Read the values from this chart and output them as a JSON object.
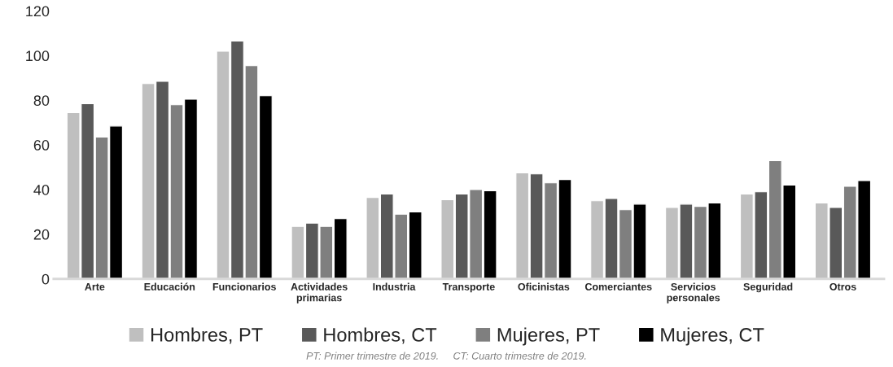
{
  "chart_data": {
    "type": "bar",
    "categories": [
      "Arte",
      "Educación",
      "Funcionarios",
      "Actividades primarias",
      "Industria",
      "Transporte",
      "Oficinistas",
      "Comerciantes",
      "Servicios personales",
      "Seguridad",
      "Otros"
    ],
    "series": [
      {
        "name": "Hombres, PT",
        "color": "#bfbfbf",
        "values": [
          74.5,
          87.5,
          102,
          23.5,
          36.5,
          35.5,
          47.5,
          35,
          32,
          38,
          34
        ]
      },
      {
        "name": "Hombres, CT",
        "color": "#595959",
        "values": [
          78.5,
          88.5,
          106.5,
          25,
          38,
          38,
          47,
          36,
          33.5,
          39,
          32
        ]
      },
      {
        "name": "Mujeres, PT",
        "color": "#7f7f7f",
        "values": [
          63.5,
          78,
          95.5,
          23.5,
          29,
          40,
          43,
          31,
          32.5,
          53,
          41.5
        ]
      },
      {
        "name": "Mujeres, CT",
        "color": "#000000",
        "values": [
          68.5,
          80.5,
          82,
          27,
          30,
          39.5,
          44.5,
          33.5,
          34,
          42,
          44
        ]
      }
    ],
    "ylim": [
      0,
      120
    ],
    "yticks": [
      0,
      20,
      40,
      60,
      80,
      100,
      120
    ],
    "grid": false,
    "legend": "bottom",
    "annotations": [
      "PT: Primer trimestre de 2019.     CT: Cuarto trimestre de 2019."
    ]
  }
}
